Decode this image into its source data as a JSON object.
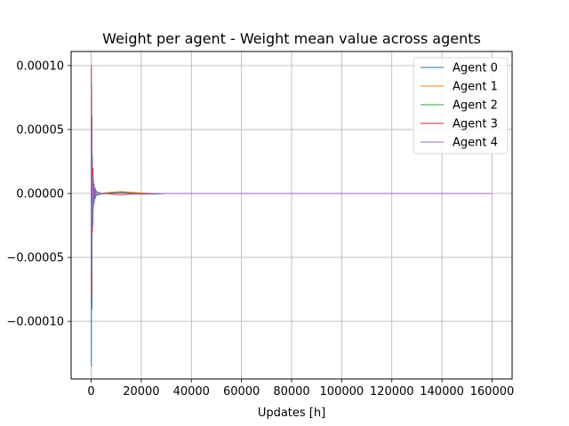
{
  "chart_data": {
    "type": "line",
    "title": "Weight per agent - Weight mean value across agents",
    "xlabel": "Updates [h]",
    "ylabel": "",
    "xlim": [
      -8000,
      168000
    ],
    "ylim": [
      -0.000145,
      0.000111
    ],
    "xticks": [
      0,
      20000,
      40000,
      60000,
      80000,
      100000,
      120000,
      140000,
      160000
    ],
    "xtick_labels": [
      "0",
      "20000",
      "40000",
      "60000",
      "80000",
      "100000",
      "120000",
      "140000",
      "160000"
    ],
    "yticks": [
      0.0001,
      5e-05,
      0.0,
      -5e-05,
      -0.0001
    ],
    "ytick_labels": [
      "0.00010",
      "0.00005",
      "0.00000",
      "−0.00005",
      "−0.00010"
    ],
    "grid": true,
    "legend_position": "top-right",
    "series": [
      {
        "name": "Agent 0",
        "color": "#1f77b4",
        "x": [
          0,
          100,
          200,
          300,
          500,
          700,
          900,
          1200,
          1600,
          2000,
          3000,
          5000,
          8000,
          12000,
          16000,
          20000,
          25000,
          30000,
          40000,
          60000,
          80000,
          100000,
          120000,
          140000,
          160000
        ],
        "y": [
          0.0,
          -0.000135,
          8.5e-05,
          -9e-05,
          3e-05,
          -2.5e-05,
          1.2e-05,
          -8e-06,
          4e-06,
          -2e-06,
          1e-06,
          -5e-07,
          1e-06,
          1e-06,
          5e-07,
          -5e-07,
          -5e-07,
          0.0,
          0.0,
          0.0,
          0.0,
          0.0,
          0.0,
          0.0,
          0.0
        ]
      },
      {
        "name": "Agent 1",
        "color": "#ff7f0e",
        "x": [
          0,
          100,
          200,
          300,
          500,
          700,
          900,
          1200,
          1600,
          2000,
          3000,
          5000,
          8000,
          12000,
          16000,
          20000,
          25000,
          30000,
          40000,
          60000,
          80000,
          100000,
          120000,
          140000,
          160000
        ],
        "y": [
          0.0,
          8e-05,
          -7e-05,
          5e-05,
          -3e-05,
          2e-05,
          -1e-05,
          6e-06,
          -4e-06,
          2e-06,
          -1e-06,
          5e-07,
          1e-06,
          1.5e-06,
          1e-06,
          5e-07,
          0.0,
          0.0,
          0.0,
          0.0,
          0.0,
          0.0,
          0.0,
          0.0,
          0.0
        ]
      },
      {
        "name": "Agent 2",
        "color": "#2ca02c",
        "x": [
          0,
          100,
          200,
          300,
          500,
          700,
          900,
          1200,
          1600,
          2000,
          3000,
          5000,
          8000,
          12000,
          16000,
          20000,
          25000,
          30000,
          40000,
          60000,
          80000,
          100000,
          120000,
          140000,
          160000
        ],
        "y": [
          0.0,
          6e-05,
          -5e-05,
          4e-05,
          -2e-05,
          1.5e-05,
          -8e-06,
          5e-06,
          -3e-06,
          2e-06,
          -1e-06,
          0.0,
          5e-07,
          1e-06,
          5e-07,
          0.0,
          0.0,
          0.0,
          0.0,
          0.0,
          0.0,
          0.0,
          0.0,
          0.0,
          0.0
        ]
      },
      {
        "name": "Agent 3",
        "color": "#d62728",
        "x": [
          0,
          100,
          200,
          300,
          500,
          700,
          900,
          1200,
          1600,
          2000,
          3000,
          5000,
          8000,
          12000,
          16000,
          20000,
          25000,
          30000,
          40000,
          60000,
          80000,
          100000,
          120000,
          140000,
          160000
        ],
        "y": [
          0.0,
          0.0001,
          -8e-05,
          6e-05,
          -3e-05,
          2e-05,
          -1e-05,
          7e-06,
          -4e-06,
          2e-06,
          -1e-06,
          0.0,
          -5e-07,
          -1e-06,
          -5e-07,
          -5e-07,
          0.0,
          0.0,
          0.0,
          0.0,
          0.0,
          0.0,
          0.0,
          0.0,
          0.0
        ]
      },
      {
        "name": "Agent 4",
        "color": "#9467bd",
        "x": [
          0,
          100,
          200,
          300,
          500,
          700,
          900,
          1200,
          1600,
          2000,
          3000,
          5000,
          8000,
          12000,
          16000,
          20000,
          25000,
          30000,
          40000,
          60000,
          80000,
          100000,
          120000,
          140000,
          160000
        ],
        "y": [
          0.0,
          9e-05,
          -6e-05,
          5e-05,
          -2.5e-05,
          1.3e-05,
          -1.2e-05,
          6e-06,
          -3e-06,
          2e-06,
          -1e-06,
          0.0,
          0.0,
          5e-07,
          0.0,
          0.0,
          0.0,
          0.0,
          0.0,
          0.0,
          0.0,
          0.0,
          0.0,
          0.0,
          0.0
        ]
      }
    ]
  }
}
